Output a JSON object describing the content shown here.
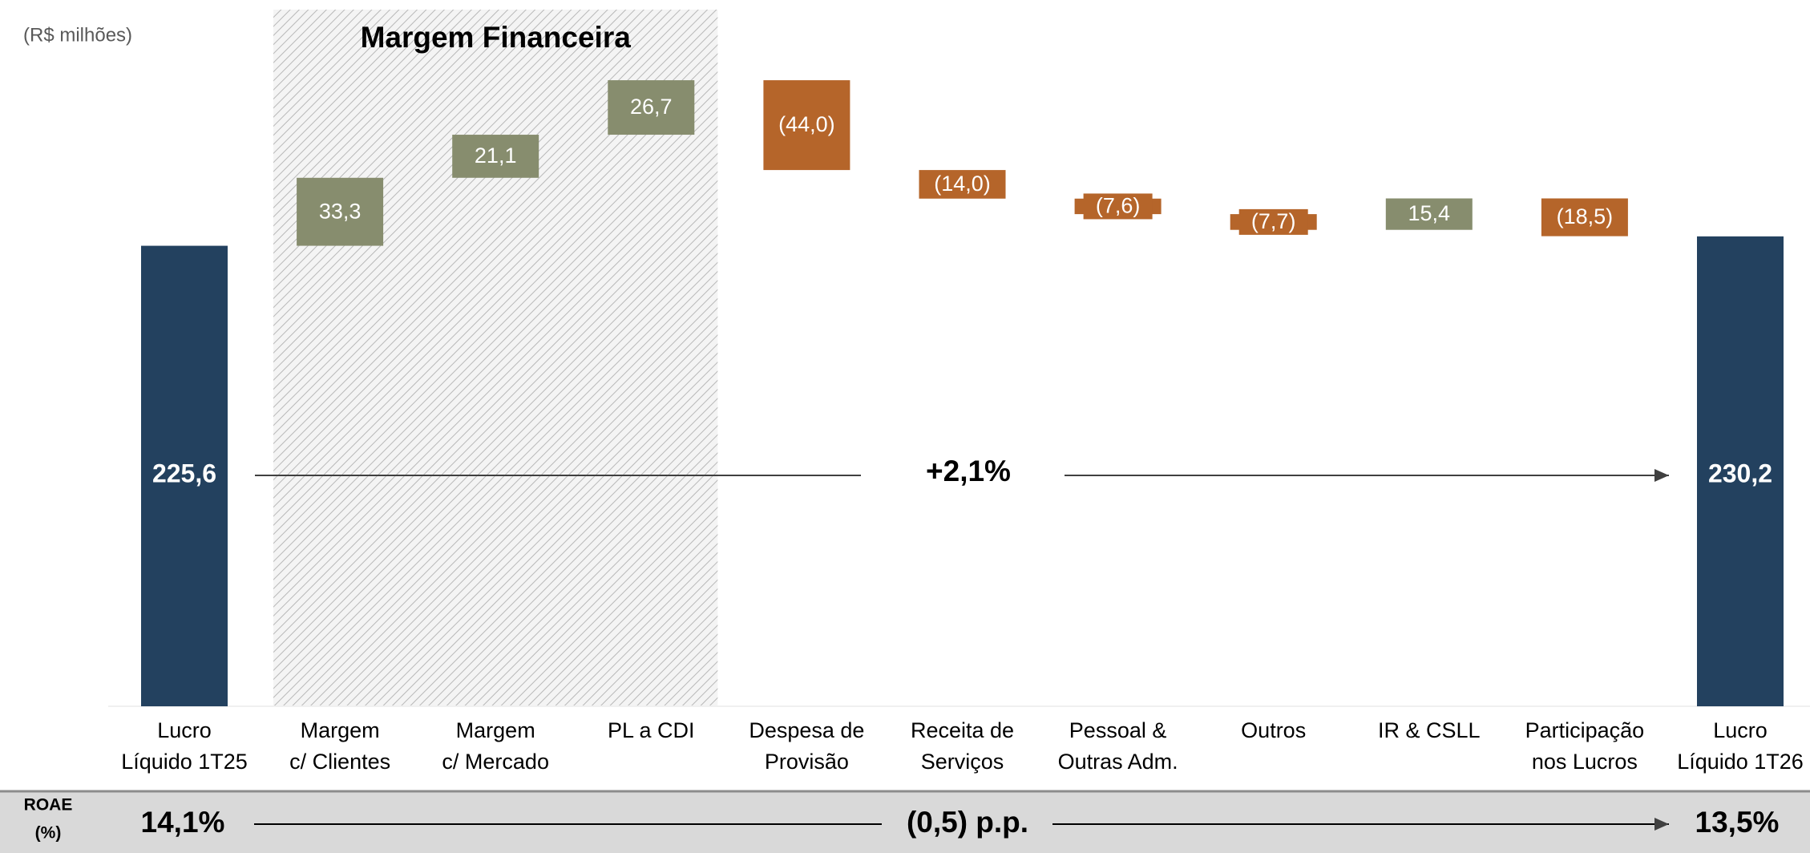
{
  "chart_data": {
    "type": "waterfall",
    "unit_note": "(R$ milhões)",
    "categories": [
      [
        "Lucro",
        "Líquido 1T25"
      ],
      [
        "Margem",
        "c/ Clientes"
      ],
      [
        "Margem",
        "c/ Mercado"
      ],
      [
        "PL a CDI"
      ],
      [
        "Despesa de",
        "Provisão"
      ],
      [
        "Receita de",
        "Serviços"
      ],
      [
        "Pessoal &",
        "Outras Adm."
      ],
      [
        "Outros"
      ],
      [
        "IR & CSLL"
      ],
      [
        "Participação",
        "nos Lucros"
      ],
      [
        "Lucro",
        "Líquido 1T26"
      ]
    ],
    "measure": [
      "total",
      "relative",
      "relative",
      "relative",
      "relative",
      "relative",
      "relative",
      "relative",
      "relative",
      "relative",
      "total"
    ],
    "values": [
      225.6,
      33.3,
      21.1,
      26.7,
      -44.0,
      -14.0,
      -7.6,
      -7.7,
      15.4,
      -18.5,
      230.2
    ],
    "value_labels": [
      "225,6",
      "33,3",
      "21,1",
      "26,7",
      "(44,0)",
      "(14,0)",
      "(7,6)",
      "(7,7)",
      "15,4",
      "(18,5)",
      "230,2"
    ],
    "colors": {
      "total": "#23415f",
      "increase": "#878d6e",
      "decrease": "#b5652a"
    },
    "ylim": [
      0,
      346
    ],
    "group": {
      "title": "Margem Financeira",
      "from": 1,
      "to": 3
    },
    "change_label": "+2,1%",
    "roae": {
      "label": [
        "ROAE",
        "(%)"
      ],
      "start": "14,1%",
      "change": "(0,5) p.p.",
      "end": "13,5%"
    }
  }
}
